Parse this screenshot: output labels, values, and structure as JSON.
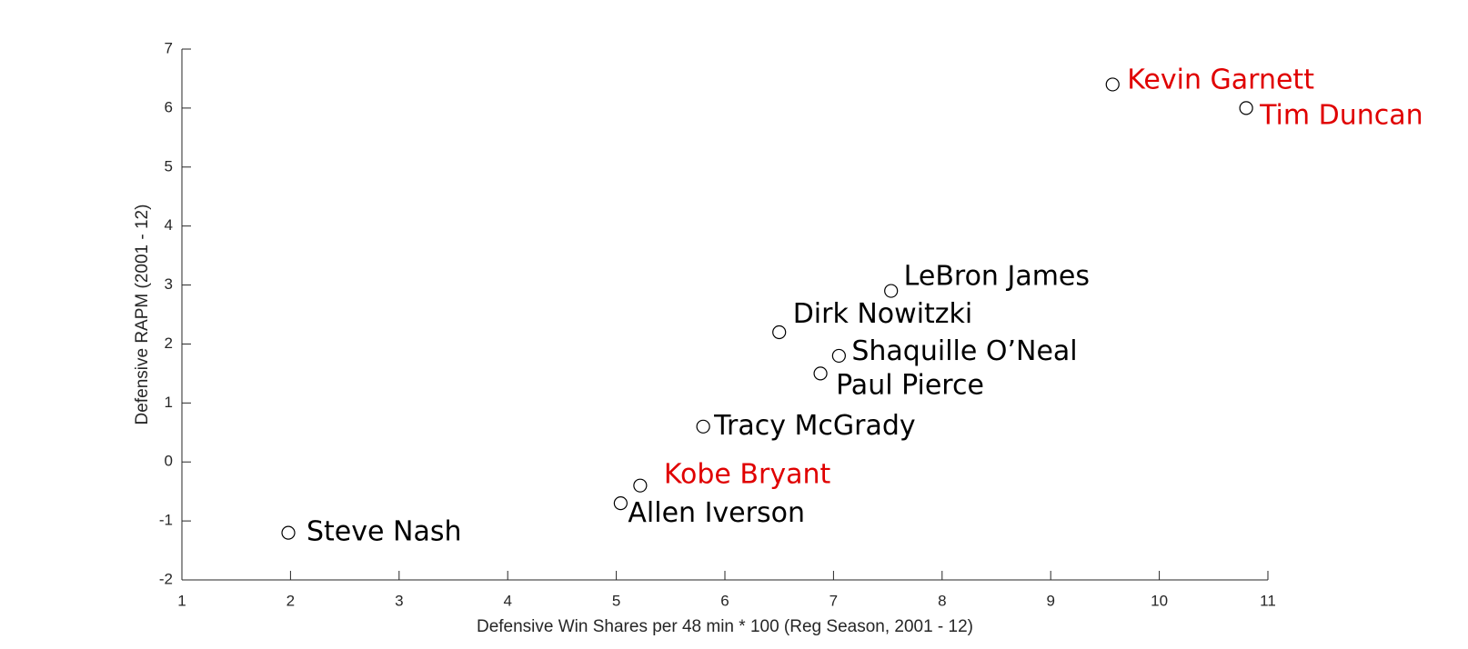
{
  "chart_data": {
    "type": "scatter",
    "xlabel": "Defensive Win Shares per 48 min * 100 (Reg Season, 2001 - 12)",
    "ylabel": "Defensive RAPM (2001 - 12)",
    "x": [
      1.98,
      5.04,
      5.22,
      5.8,
      6.88,
      7.05,
      6.5,
      7.53,
      9.57,
      10.8
    ],
    "values": [
      -1.2,
      -0.7,
      -0.4,
      0.6,
      1.5,
      1.8,
      2.2,
      2.9,
      6.4,
      6.0
    ],
    "labels": [
      "Steve Nash",
      "Allen Iverson",
      "Kobe Bryant",
      "Tracy McGrady",
      "Paul Pierce",
      "Shaquille O’Neal",
      "Dirk Nowitzki",
      "LeBron James",
      "Kevin Garnett",
      "Tim Duncan"
    ],
    "label_colors": [
      "#000000",
      "#000000",
      "#e00000",
      "#000000",
      "#000000",
      "#000000",
      "#000000",
      "#000000",
      "#e00000",
      "#e00000"
    ],
    "color": "#000000",
    "xlim": [
      1,
      11
    ],
    "xticks": [
      1,
      2,
      3,
      4,
      5,
      6,
      7,
      8,
      9,
      10,
      11
    ],
    "ylim": [
      -2,
      7
    ],
    "yticks": [
      -2,
      -1,
      0,
      1,
      2,
      3,
      4,
      5,
      6,
      7
    ],
    "grid": false
  }
}
